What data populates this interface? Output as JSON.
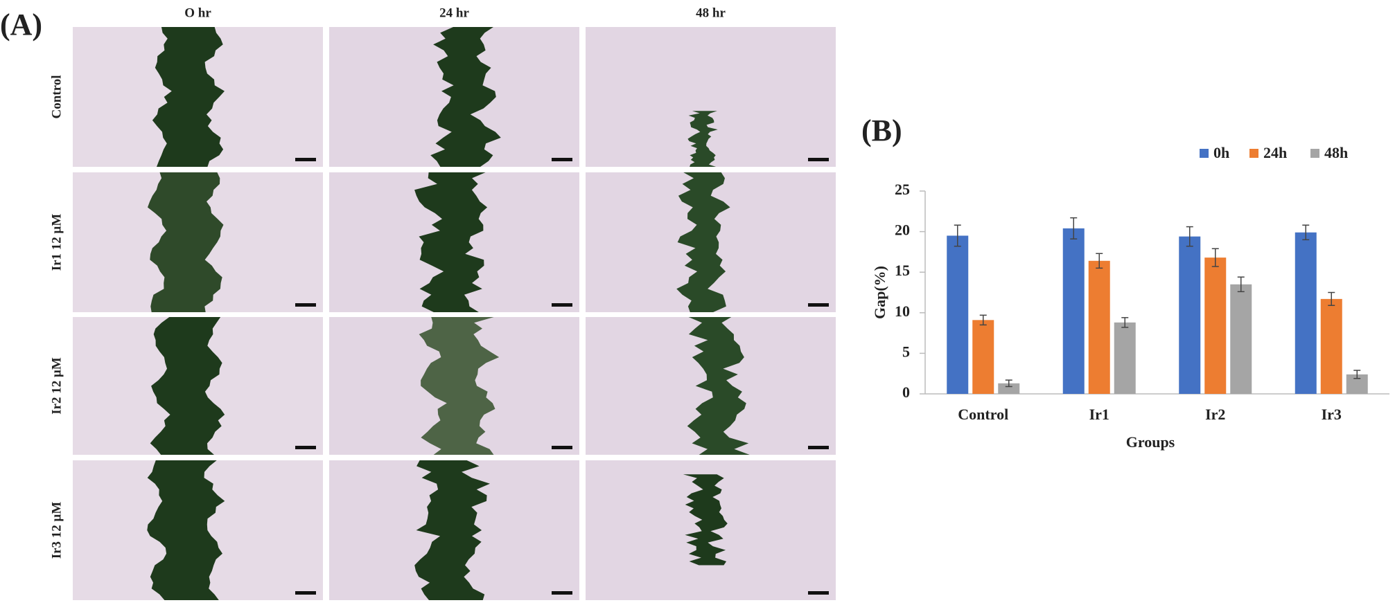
{
  "panel_a": {
    "label": "(A)",
    "columns": [
      "O hr",
      "24 hr",
      "48 hr"
    ],
    "rows": [
      "Control",
      "Ir1 12 μM",
      "Ir2 12 μM",
      "Ir3 12 μM"
    ]
  },
  "chart_data": {
    "type": "bar",
    "label": "(B)",
    "categories": [
      "Control",
      "Ir1",
      "Ir2",
      "Ir3"
    ],
    "series": [
      {
        "name": "0h",
        "color": "#4472c4",
        "values": [
          19.5,
          20.4,
          19.4,
          19.9
        ],
        "errors": [
          1.3,
          1.3,
          1.2,
          0.9
        ]
      },
      {
        "name": "24h",
        "color": "#ed7d31",
        "values": [
          9.1,
          16.4,
          16.8,
          11.7
        ],
        "errors": [
          0.6,
          0.9,
          1.1,
          0.8
        ]
      },
      {
        "name": "48h",
        "color": "#a5a5a5",
        "values": [
          1.3,
          8.8,
          13.5,
          2.4
        ],
        "errors": [
          0.4,
          0.6,
          0.9,
          0.5
        ]
      }
    ],
    "x_label": "Groups",
    "y_label": "Gap(%)",
    "ylim": [
      0,
      25
    ],
    "yticks": [
      0,
      5,
      10,
      15,
      20,
      25
    ],
    "grid": false,
    "legend": "top-right"
  }
}
